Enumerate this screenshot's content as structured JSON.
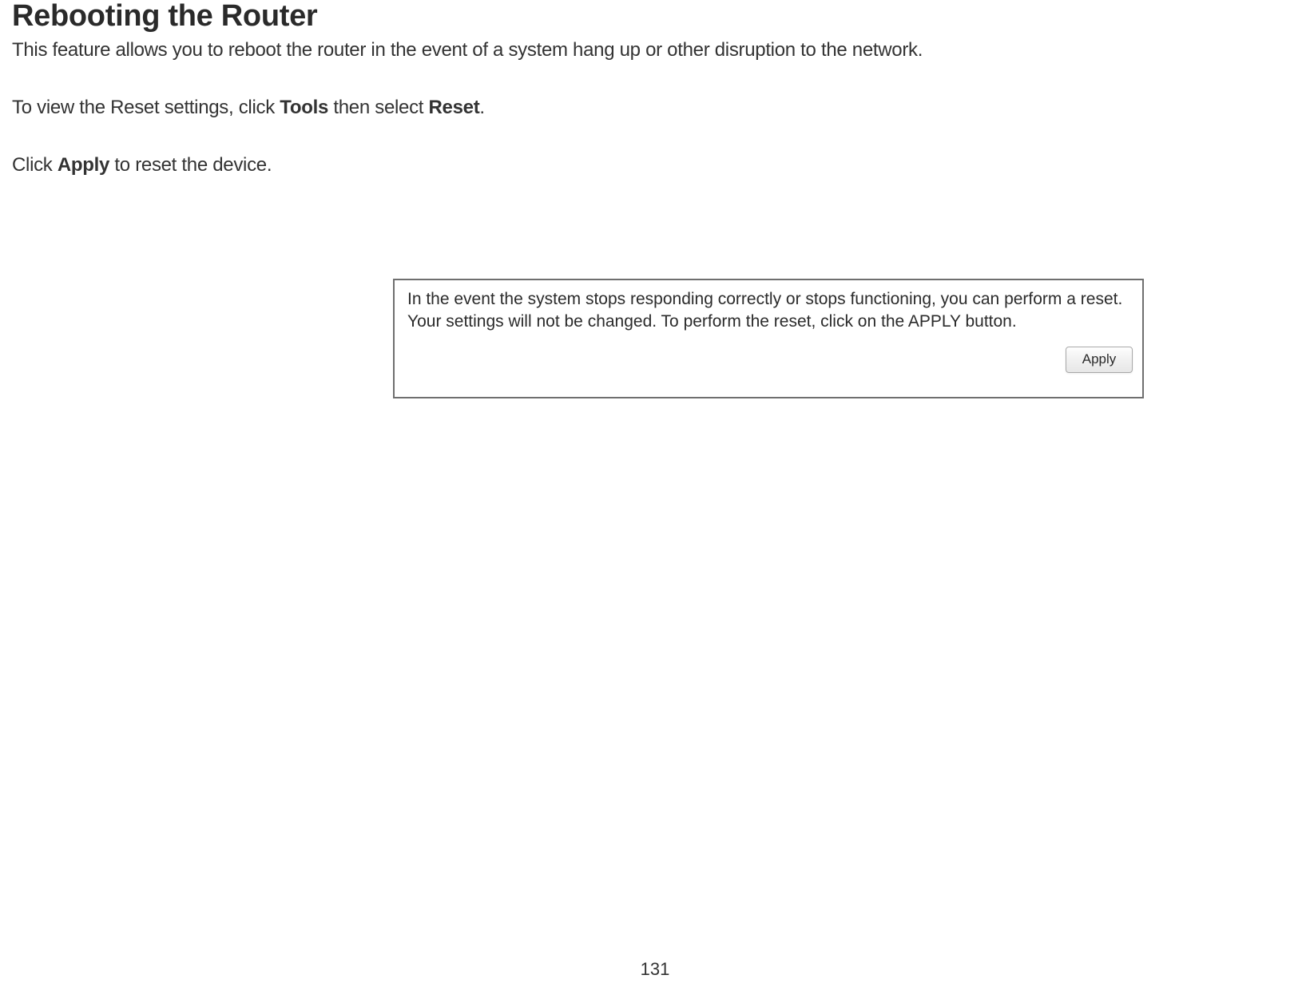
{
  "page": {
    "heading": "Rebooting the Router",
    "subtitle": "This feature allows you to reboot the router in the event of a system hang up or other disruption to the network.",
    "instruction_prefix": "To view the Reset settings, click ",
    "instruction_bold1": "Tools",
    "instruction_mid": " then select ",
    "instruction_bold2": "Reset",
    "instruction_suffix": ".",
    "apply_prefix": "Click ",
    "apply_bold": "Apply",
    "apply_suffix": " to reset the device.",
    "page_number": "131"
  },
  "panel": {
    "text": "In the event the system stops responding correctly or stops functioning, you can perform a reset. Your settings will not be changed. To perform the reset, click on the APPLY button.",
    "apply_label": "Apply",
    "border_color": "#6f6f6f",
    "background": "#ffffff",
    "button": {
      "bg_top": "#fefefe",
      "bg_bottom": "#e7e7e7",
      "border": "#a9a9a9",
      "text_color": "#2b2b2b"
    }
  }
}
